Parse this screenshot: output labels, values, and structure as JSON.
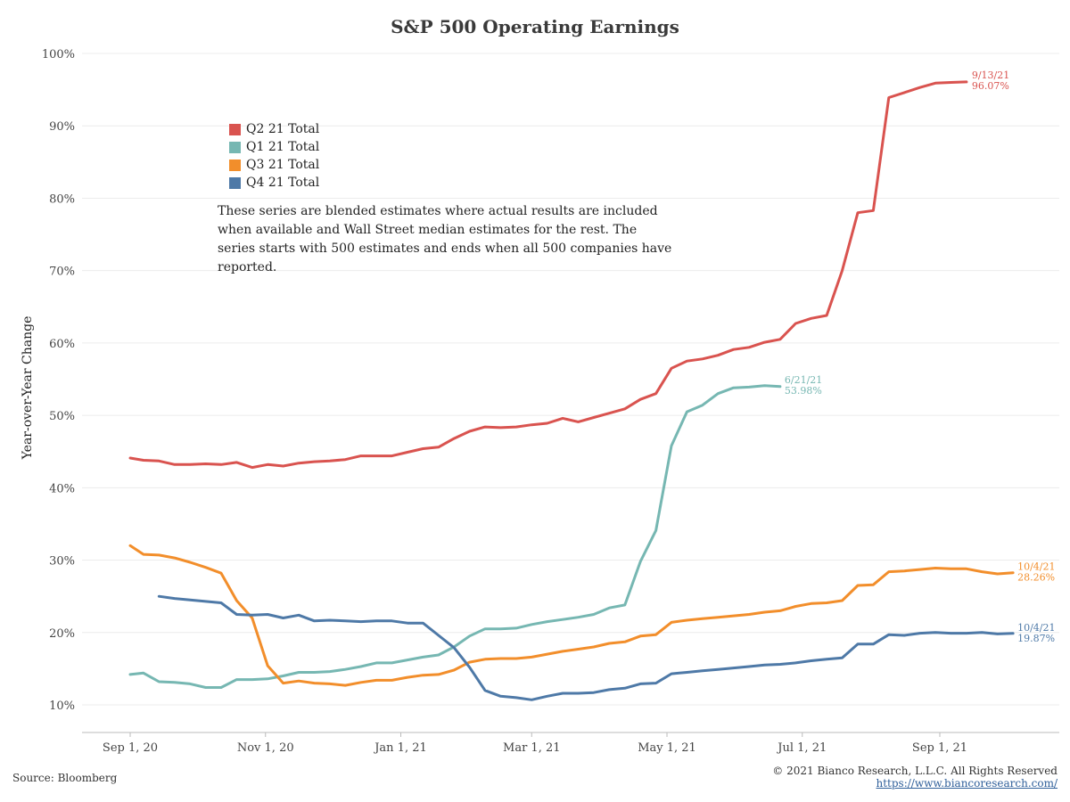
{
  "chart_data": {
    "type": "line",
    "title": "S&P 500 Operating Earnings",
    "ylabel": "Year-over-Year Change",
    "xlabel": "",
    "x_ticks": [
      "Sep 1, 20",
      "Nov 1, 20",
      "Jan 1, 21",
      "Mar 1, 21",
      "May 1, 21",
      "Jul 1, 21",
      "Sep 1, 21"
    ],
    "y_ticks": [
      "10%",
      "20%",
      "30%",
      "40%",
      "50%",
      "60%",
      "70%",
      "80%",
      "90%",
      "100%"
    ],
    "ylim": [
      10,
      100
    ],
    "grid": "horizontal",
    "legend_position": "top-left",
    "note": "These series are blended estimates where actual results are included when available and Wall Street median estimates for the rest.  The series starts with 500 estimates and ends when all 500 companies have reported.",
    "series": [
      {
        "name": "Q2 21 Total",
        "color": "#d9534f",
        "end_label_date": "9/13/21",
        "end_label_value": "96.07%",
        "points": [
          [
            "2020-09-01",
            44.1
          ],
          [
            "2020-09-07",
            43.8
          ],
          [
            "2020-09-14",
            43.7
          ],
          [
            "2020-09-21",
            43.2
          ],
          [
            "2020-09-28",
            43.2
          ],
          [
            "2020-10-05",
            43.3
          ],
          [
            "2020-10-12",
            43.2
          ],
          [
            "2020-10-19",
            43.5
          ],
          [
            "2020-10-26",
            42.8
          ],
          [
            "2020-11-02",
            43.2
          ],
          [
            "2020-11-09",
            43.0
          ],
          [
            "2020-11-16",
            43.4
          ],
          [
            "2020-11-23",
            43.6
          ],
          [
            "2020-11-30",
            43.7
          ],
          [
            "2020-12-07",
            43.9
          ],
          [
            "2020-12-14",
            44.4
          ],
          [
            "2020-12-21",
            44.4
          ],
          [
            "2020-12-28",
            44.4
          ],
          [
            "2021-01-04",
            44.9
          ],
          [
            "2021-01-11",
            45.4
          ],
          [
            "2021-01-18",
            45.6
          ],
          [
            "2021-01-25",
            46.8
          ],
          [
            "2021-02-01",
            47.8
          ],
          [
            "2021-02-08",
            48.4
          ],
          [
            "2021-02-15",
            48.3
          ],
          [
            "2021-02-22",
            48.4
          ],
          [
            "2021-03-01",
            48.7
          ],
          [
            "2021-03-08",
            48.9
          ],
          [
            "2021-03-15",
            49.6
          ],
          [
            "2021-03-22",
            49.1
          ],
          [
            "2021-03-29",
            49.7
          ],
          [
            "2021-04-05",
            50.3
          ],
          [
            "2021-04-12",
            50.9
          ],
          [
            "2021-04-19",
            52.2
          ],
          [
            "2021-04-26",
            53.0
          ],
          [
            "2021-05-03",
            56.5
          ],
          [
            "2021-05-10",
            57.5
          ],
          [
            "2021-05-17",
            57.8
          ],
          [
            "2021-05-24",
            58.3
          ],
          [
            "2021-05-31",
            59.1
          ],
          [
            "2021-06-07",
            59.4
          ],
          [
            "2021-06-14",
            60.1
          ],
          [
            "2021-06-21",
            60.5
          ],
          [
            "2021-06-28",
            62.7
          ],
          [
            "2021-07-05",
            63.4
          ],
          [
            "2021-07-12",
            63.8
          ],
          [
            "2021-07-19",
            70.0
          ],
          [
            "2021-07-26",
            78.0
          ],
          [
            "2021-08-02",
            78.3
          ],
          [
            "2021-08-09",
            93.9
          ],
          [
            "2021-08-16",
            94.6
          ],
          [
            "2021-08-23",
            95.3
          ],
          [
            "2021-08-30",
            95.9
          ],
          [
            "2021-09-06",
            96.0
          ],
          [
            "2021-09-13",
            96.07
          ]
        ]
      },
      {
        "name": "Q1 21 Total",
        "color": "#76b7b2",
        "end_label_date": "6/21/21",
        "end_label_value": "53.98%",
        "points": [
          [
            "2020-09-01",
            14.2
          ],
          [
            "2020-09-07",
            14.4
          ],
          [
            "2020-09-14",
            13.2
          ],
          [
            "2020-09-21",
            13.1
          ],
          [
            "2020-09-28",
            12.9
          ],
          [
            "2020-10-05",
            12.4
          ],
          [
            "2020-10-12",
            12.4
          ],
          [
            "2020-10-19",
            13.5
          ],
          [
            "2020-10-26",
            13.5
          ],
          [
            "2020-11-02",
            13.6
          ],
          [
            "2020-11-09",
            14.0
          ],
          [
            "2020-11-16",
            14.5
          ],
          [
            "2020-11-23",
            14.5
          ],
          [
            "2020-11-30",
            14.6
          ],
          [
            "2020-12-07",
            14.9
          ],
          [
            "2020-12-14",
            15.3
          ],
          [
            "2020-12-21",
            15.8
          ],
          [
            "2020-12-28",
            15.8
          ],
          [
            "2021-01-04",
            16.2
          ],
          [
            "2021-01-11",
            16.6
          ],
          [
            "2021-01-18",
            16.9
          ],
          [
            "2021-01-25",
            18.0
          ],
          [
            "2021-02-01",
            19.5
          ],
          [
            "2021-02-08",
            20.5
          ],
          [
            "2021-02-15",
            20.5
          ],
          [
            "2021-02-22",
            20.6
          ],
          [
            "2021-03-01",
            21.1
          ],
          [
            "2021-03-08",
            21.5
          ],
          [
            "2021-03-15",
            21.8
          ],
          [
            "2021-03-22",
            22.1
          ],
          [
            "2021-03-29",
            22.5
          ],
          [
            "2021-04-05",
            23.4
          ],
          [
            "2021-04-12",
            23.8
          ],
          [
            "2021-04-19",
            29.8
          ],
          [
            "2021-04-26",
            34.1
          ],
          [
            "2021-05-03",
            45.8
          ],
          [
            "2021-05-10",
            50.5
          ],
          [
            "2021-05-17",
            51.4
          ],
          [
            "2021-05-24",
            53.0
          ],
          [
            "2021-05-31",
            53.8
          ],
          [
            "2021-06-07",
            53.9
          ],
          [
            "2021-06-14",
            54.1
          ],
          [
            "2021-06-21",
            53.98
          ]
        ]
      },
      {
        "name": "Q3 21 Total",
        "color": "#f28e2b",
        "end_label_date": "10/4/21",
        "end_label_value": "28.26%",
        "points": [
          [
            "2020-09-01",
            32.0
          ],
          [
            "2020-09-07",
            30.8
          ],
          [
            "2020-09-14",
            30.7
          ],
          [
            "2020-09-21",
            30.3
          ],
          [
            "2020-09-28",
            29.7
          ],
          [
            "2020-10-05",
            29.0
          ],
          [
            "2020-10-12",
            28.2
          ],
          [
            "2020-10-19",
            24.4
          ],
          [
            "2020-10-26",
            22.0
          ],
          [
            "2020-11-02",
            15.4
          ],
          [
            "2020-11-09",
            13.0
          ],
          [
            "2020-11-16",
            13.3
          ],
          [
            "2020-11-23",
            13.0
          ],
          [
            "2020-11-30",
            12.9
          ],
          [
            "2020-12-07",
            12.7
          ],
          [
            "2020-12-14",
            13.1
          ],
          [
            "2020-12-21",
            13.4
          ],
          [
            "2020-12-28",
            13.4
          ],
          [
            "2021-01-04",
            13.8
          ],
          [
            "2021-01-11",
            14.1
          ],
          [
            "2021-01-18",
            14.2
          ],
          [
            "2021-01-25",
            14.8
          ],
          [
            "2021-02-01",
            15.9
          ],
          [
            "2021-02-08",
            16.3
          ],
          [
            "2021-02-15",
            16.4
          ],
          [
            "2021-02-22",
            16.4
          ],
          [
            "2021-03-01",
            16.6
          ],
          [
            "2021-03-08",
            17.0
          ],
          [
            "2021-03-15",
            17.4
          ],
          [
            "2021-03-22",
            17.7
          ],
          [
            "2021-03-29",
            18.0
          ],
          [
            "2021-04-05",
            18.5
          ],
          [
            "2021-04-12",
            18.7
          ],
          [
            "2021-04-19",
            19.5
          ],
          [
            "2021-04-26",
            19.7
          ],
          [
            "2021-05-03",
            21.4
          ],
          [
            "2021-05-10",
            21.7
          ],
          [
            "2021-05-17",
            21.9
          ],
          [
            "2021-05-24",
            22.1
          ],
          [
            "2021-05-31",
            22.3
          ],
          [
            "2021-06-07",
            22.5
          ],
          [
            "2021-06-14",
            22.8
          ],
          [
            "2021-06-21",
            23.0
          ],
          [
            "2021-06-28",
            23.6
          ],
          [
            "2021-07-05",
            24.0
          ],
          [
            "2021-07-12",
            24.1
          ],
          [
            "2021-07-19",
            24.4
          ],
          [
            "2021-07-26",
            26.5
          ],
          [
            "2021-08-02",
            26.6
          ],
          [
            "2021-08-09",
            28.4
          ],
          [
            "2021-08-16",
            28.5
          ],
          [
            "2021-08-23",
            28.7
          ],
          [
            "2021-08-30",
            28.9
          ],
          [
            "2021-09-06",
            28.8
          ],
          [
            "2021-09-13",
            28.8
          ],
          [
            "2021-09-20",
            28.4
          ],
          [
            "2021-09-27",
            28.1
          ],
          [
            "2021-10-04",
            28.26
          ]
        ]
      },
      {
        "name": "Q4 21 Total",
        "color": "#4e79a7",
        "end_label_date": "10/4/21",
        "end_label_value": "19.87%",
        "points": [
          [
            "2020-09-14",
            25.0
          ],
          [
            "2020-09-21",
            24.7
          ],
          [
            "2020-09-28",
            24.5
          ],
          [
            "2020-10-05",
            24.3
          ],
          [
            "2020-10-12",
            24.1
          ],
          [
            "2020-10-19",
            22.5
          ],
          [
            "2020-10-26",
            22.4
          ],
          [
            "2020-11-02",
            22.5
          ],
          [
            "2020-11-09",
            22.0
          ],
          [
            "2020-11-16",
            22.4
          ],
          [
            "2020-11-23",
            21.6
          ],
          [
            "2020-11-30",
            21.7
          ],
          [
            "2020-12-07",
            21.6
          ],
          [
            "2020-12-14",
            21.5
          ],
          [
            "2020-12-21",
            21.6
          ],
          [
            "2020-12-28",
            21.6
          ],
          [
            "2021-01-04",
            21.3
          ],
          [
            "2021-01-11",
            21.3
          ],
          [
            "2021-01-18",
            19.6
          ],
          [
            "2021-01-25",
            17.9
          ],
          [
            "2021-02-01",
            15.2
          ],
          [
            "2021-02-08",
            12.0
          ],
          [
            "2021-02-15",
            11.2
          ],
          [
            "2021-02-22",
            11.0
          ],
          [
            "2021-03-01",
            10.7
          ],
          [
            "2021-03-08",
            11.2
          ],
          [
            "2021-03-15",
            11.6
          ],
          [
            "2021-03-22",
            11.6
          ],
          [
            "2021-03-29",
            11.7
          ],
          [
            "2021-04-05",
            12.1
          ],
          [
            "2021-04-12",
            12.3
          ],
          [
            "2021-04-19",
            12.9
          ],
          [
            "2021-04-26",
            13.0
          ],
          [
            "2021-05-03",
            14.3
          ],
          [
            "2021-05-10",
            14.5
          ],
          [
            "2021-05-17",
            14.7
          ],
          [
            "2021-05-24",
            14.9
          ],
          [
            "2021-05-31",
            15.1
          ],
          [
            "2021-06-07",
            15.3
          ],
          [
            "2021-06-14",
            15.5
          ],
          [
            "2021-06-21",
            15.6
          ],
          [
            "2021-06-28",
            15.8
          ],
          [
            "2021-07-05",
            16.1
          ],
          [
            "2021-07-12",
            16.3
          ],
          [
            "2021-07-19",
            16.5
          ],
          [
            "2021-07-26",
            18.4
          ],
          [
            "2021-08-02",
            18.4
          ],
          [
            "2021-08-09",
            19.7
          ],
          [
            "2021-08-16",
            19.6
          ],
          [
            "2021-08-23",
            19.9
          ],
          [
            "2021-08-30",
            20.0
          ],
          [
            "2021-09-06",
            19.9
          ],
          [
            "2021-09-13",
            19.9
          ],
          [
            "2021-09-20",
            20.0
          ],
          [
            "2021-09-27",
            19.8
          ],
          [
            "2021-10-04",
            19.87
          ]
        ]
      }
    ]
  },
  "footer": {
    "source": "Source: Bloomberg",
    "copyright": "© 2021 Bianco Research, L.L.C. All Rights Reserved",
    "url": "https://www.biancoresearch.com/"
  }
}
